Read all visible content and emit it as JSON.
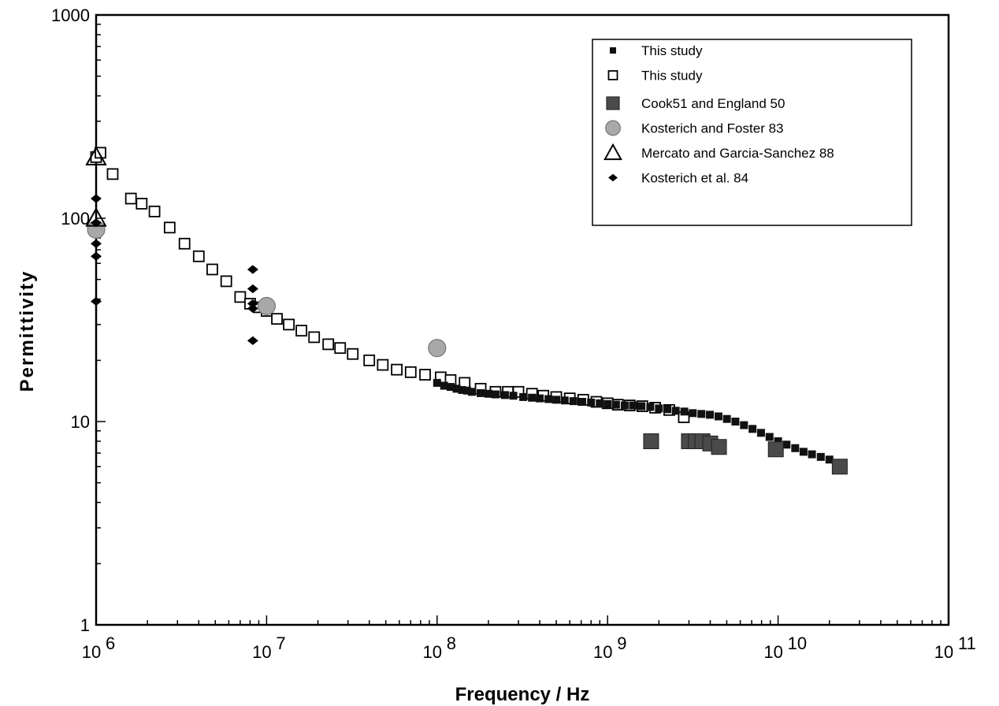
{
  "chart_data": {
    "type": "scatter",
    "title": "",
    "xlabel": "Frequency / Hz",
    "ylabel": "Permittivity",
    "x_scale": "log",
    "y_scale": "log",
    "xlim": [
      1000000,
      100000000000
    ],
    "ylim": [
      1,
      1000
    ],
    "grid": false,
    "legend_position": "top-right",
    "x_ticks": [
      {
        "value": 1000000,
        "base": "10",
        "exp": "6"
      },
      {
        "value": 10000000,
        "base": "10",
        "exp": "7"
      },
      {
        "value": 100000000,
        "base": "10",
        "exp": "8"
      },
      {
        "value": 1000000000,
        "base": "10",
        "exp": "9"
      },
      {
        "value": 10000000000,
        "base": "10",
        "exp": "10"
      },
      {
        "value": 100000000000,
        "base": "10",
        "exp": "11"
      }
    ],
    "y_ticks": [
      {
        "value": 1,
        "label": "1"
      },
      {
        "value": 10,
        "label": "10"
      },
      {
        "value": 100,
        "label": "100"
      },
      {
        "value": 1000,
        "label": "1000"
      }
    ],
    "series": [
      {
        "name": "This study",
        "marker": "small-filled-square",
        "color": "#111111",
        "x": [
          100000000,
          110000000,
          120000000,
          130000000,
          140000000,
          150000000,
          160000000,
          180000000,
          200000000,
          220000000,
          250000000,
          280000000,
          320000000,
          360000000,
          400000000,
          450000000,
          500000000,
          560000000,
          630000000,
          710000000,
          800000000,
          900000000,
          1000000000,
          1120000000,
          1260000000,
          1410000000,
          1580000000,
          1780000000,
          2000000000,
          2240000000,
          2510000000,
          2820000000,
          3160000000,
          3550000000,
          3980000000,
          4470000000,
          5010000000,
          5620000000,
          6310000000,
          7080000000,
          7940000000,
          8910000000,
          10000000000,
          11200000000,
          12600000000,
          14100000000,
          15800000000,
          17800000000,
          20000000000,
          22400000000
        ],
        "y": [
          15.5,
          15,
          14.8,
          14.5,
          14.3,
          14.2,
          14,
          13.8,
          13.7,
          13.6,
          13.5,
          13.4,
          13.2,
          13.1,
          13,
          12.9,
          12.8,
          12.7,
          12.6,
          12.5,
          12.4,
          12.3,
          12.2,
          12.1,
          12,
          12,
          11.9,
          11.8,
          11.6,
          11.5,
          11.3,
          11.2,
          11,
          10.9,
          10.8,
          10.6,
          10.3,
          10,
          9.6,
          9.2,
          8.8,
          8.4,
          8,
          7.7,
          7.4,
          7.1,
          6.9,
          6.7,
          6.5,
          6.2
        ]
      },
      {
        "name": "This study",
        "marker": "open-square",
        "color": "#000000",
        "x": [
          1000000,
          1060000,
          1250000,
          1600000,
          1850000,
          2200000,
          2700000,
          3300000,
          4000000,
          4800000,
          5800000,
          7000000,
          8000000,
          9000000,
          10000000,
          11500000,
          13500000,
          16000000,
          19000000,
          23000000,
          27000000,
          32000000,
          40000000,
          48000000,
          58000000,
          70000000,
          85000000,
          105000000,
          120000000,
          145000000,
          180000000,
          220000000,
          260000000,
          300000000,
          360000000,
          420000000,
          500000000,
          600000000,
          720000000,
          860000000,
          1000000000,
          1150000000,
          1350000000,
          1600000000,
          1900000000,
          2300000000,
          2800000000
        ],
        "y": [
          200,
          210,
          165,
          125,
          118,
          108,
          90,
          75,
          65,
          56,
          49,
          41,
          38,
          36.5,
          35,
          32,
          30,
          28,
          26,
          24,
          23,
          21.5,
          20,
          19,
          18,
          17.5,
          17,
          16.5,
          16,
          15.5,
          14.5,
          14,
          14,
          14,
          13.7,
          13.4,
          13.2,
          13,
          12.8,
          12.5,
          12.3,
          12.1,
          12,
          11.9,
          11.7,
          11.4,
          10.5
        ]
      },
      {
        "name": "Cook51 and England 50",
        "marker": "large-filled-square",
        "color": "#4a4a4a",
        "x": [
          1800000000,
          3000000000,
          3300000000,
          3600000000,
          4000000000,
          4500000000,
          9700000000,
          23000000000
        ],
        "y": [
          8,
          8,
          8,
          8,
          7.8,
          7.5,
          7.3,
          6
        ]
      },
      {
        "name": "Kosterich and Foster 83",
        "marker": "gray-circle",
        "color": "#a8a8a8",
        "x": [
          1000000,
          10000000,
          100000000
        ],
        "y": [
          88,
          37,
          23
        ]
      },
      {
        "name": "Mercato and Garcia-Sanchez 88",
        "marker": "open-triangle",
        "color": "#000000",
        "x": [
          1000000,
          1000000
        ],
        "y": [
          200,
          100
        ]
      },
      {
        "name": "Kosterich et al. 84",
        "marker": "filled-diamond",
        "color": "#000000",
        "x": [
          1000000,
          1000000,
          1000000,
          1000000,
          1000000,
          8300000,
          8300000,
          8300000,
          8300000,
          8300000
        ],
        "y": [
          125,
          75,
          65,
          39,
          95,
          56,
          45,
          38,
          36,
          25
        ]
      }
    ]
  }
}
